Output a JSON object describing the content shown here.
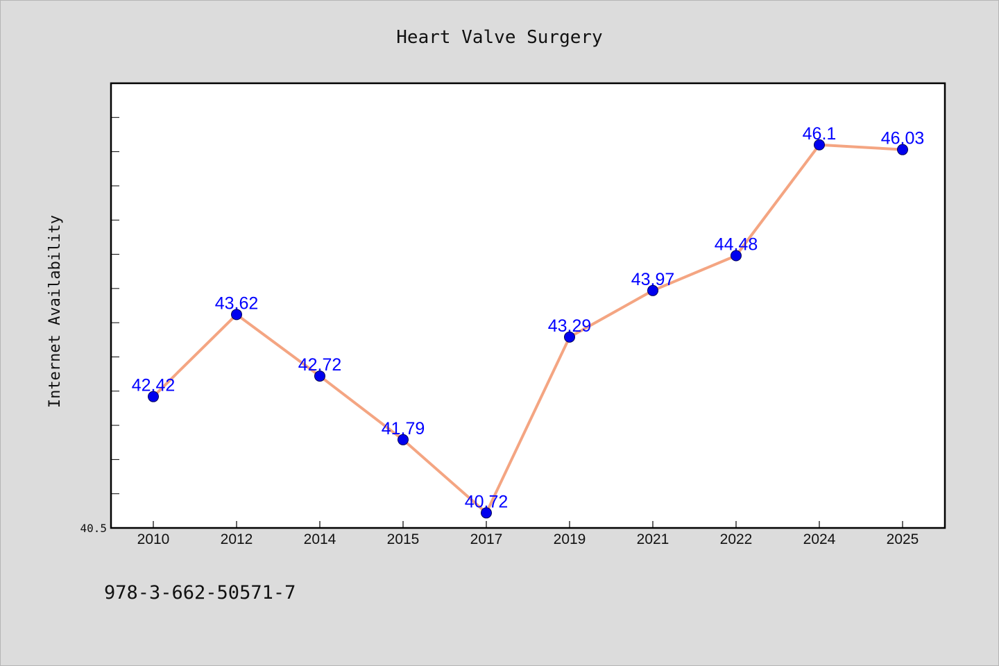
{
  "chart_data": {
    "type": "line",
    "title": "Heart Valve Surgery",
    "xlabel": "",
    "ylabel": "Internet Availability",
    "categories": [
      "2010",
      "2012",
      "2014",
      "2015",
      "2017",
      "2019",
      "2021",
      "2022",
      "2024",
      "2025"
    ],
    "series": [
      {
        "values": [
          42.42,
          43.62,
          42.72,
          41.79,
          40.72,
          43.29,
          43.97,
          44.48,
          46.1,
          46.03
        ]
      }
    ],
    "data_labels": [
      "42.42",
      "43.62",
      "42.72",
      "41.79",
      "40.72",
      "43.29",
      "43.97",
      "44.48",
      "46.1",
      "46.03"
    ],
    "ylim": [
      40.5,
      47.0
    ],
    "y_tick_labels": [
      "40.5"
    ],
    "grid": false,
    "legend": "none",
    "colors": {
      "line": "#f4a582",
      "marker": "#0000ee",
      "label": "#0000ff",
      "background": "#dcdcdc",
      "plot_background": "#ffffff"
    }
  },
  "footer": {
    "isbn": "978-3-662-50571-7"
  }
}
